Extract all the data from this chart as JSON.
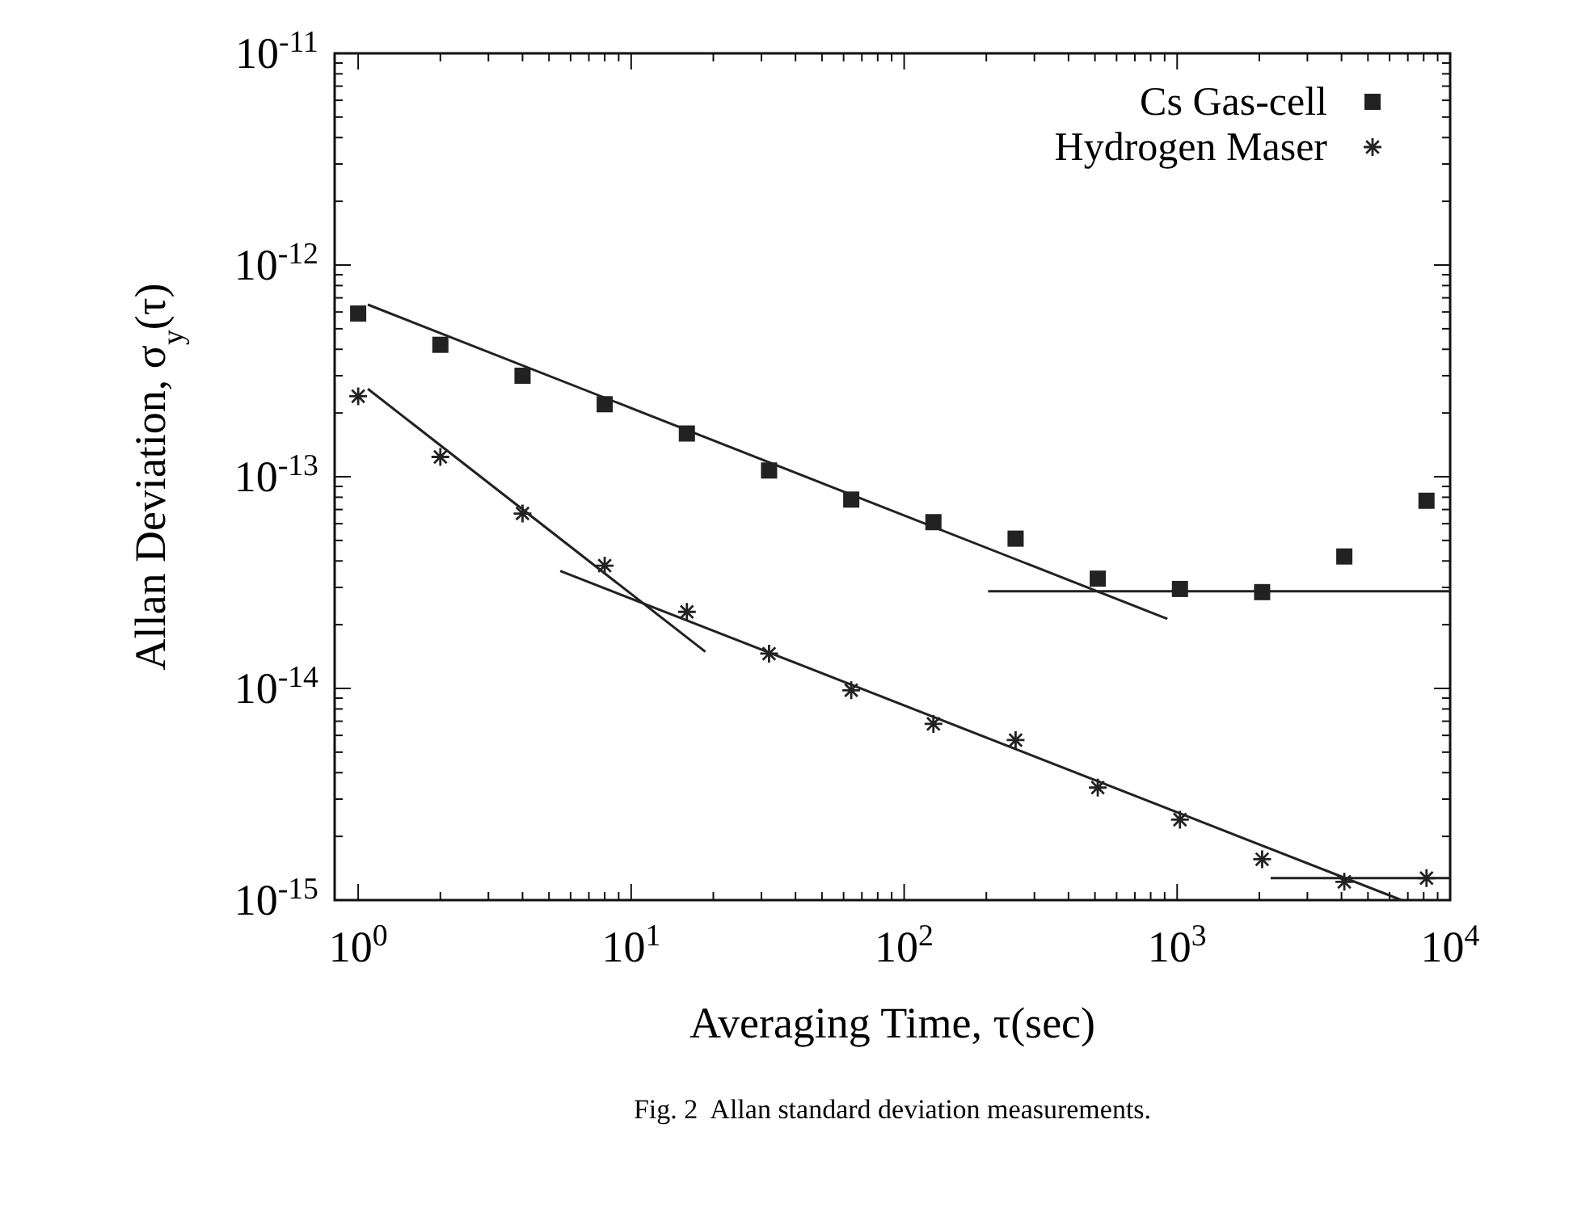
{
  "chart_data": {
    "type": "scatter",
    "xlabel": "Averaging Time, τ(sec)",
    "ylabel": "Allan Deviation, σ$_{y}$(τ)",
    "annotations": [
      "Fig. 2  Allan standard deviation measurements."
    ],
    "log": "xy",
    "legend": "top right",
    "grid": false,
    "xlim": [
      0.82,
      10000
    ],
    "xticks": [
      {
        "value": 1,
        "label": "10$^{0}$"
      },
      {
        "value": 10,
        "label": "10$^{1}$"
      },
      {
        "value": 100,
        "label": "10$^{2}$"
      },
      {
        "value": 1000,
        "label": "10$^{3}$"
      },
      {
        "value": 10000,
        "label": "10$^{4}$"
      },
      {
        "value": 2,
        "label": null
      },
      {
        "value": 3,
        "label": null
      },
      {
        "value": 4,
        "label": null
      },
      {
        "value": 5,
        "label": null
      },
      {
        "value": 6,
        "label": null
      },
      {
        "value": 7,
        "label": null
      },
      {
        "value": 8,
        "label": null
      },
      {
        "value": 9,
        "label": null
      },
      {
        "value": 20,
        "label": null
      },
      {
        "value": 30,
        "label": null
      },
      {
        "value": 40,
        "label": null
      },
      {
        "value": 50,
        "label": null
      },
      {
        "value": 60,
        "label": null
      },
      {
        "value": 70,
        "label": null
      },
      {
        "value": 80,
        "label": null
      },
      {
        "value": 90,
        "label": null
      },
      {
        "value": 200,
        "label": null
      },
      {
        "value": 300,
        "label": null
      },
      {
        "value": 400,
        "label": null
      },
      {
        "value": 500,
        "label": null
      },
      {
        "value": 600,
        "label": null
      },
      {
        "value": 700,
        "label": null
      },
      {
        "value": 800,
        "label": null
      },
      {
        "value": 900,
        "label": null
      },
      {
        "value": 2000,
        "label": null
      },
      {
        "value": 3000,
        "label": null
      },
      {
        "value": 4000,
        "label": null
      },
      {
        "value": 5000,
        "label": null
      },
      {
        "value": 6000,
        "label": null
      },
      {
        "value": 7000,
        "label": null
      },
      {
        "value": 8000,
        "label": null
      },
      {
        "value": 9000,
        "label": null
      }
    ],
    "ylim": [
      1e-15,
      1e-11
    ],
    "yticks": [
      {
        "value": 1e-15,
        "label": "10$^{-15}$"
      },
      {
        "value": 1e-14,
        "label": "10$^{-14}$"
      },
      {
        "value": 1e-13,
        "label": "10$^{-13}$"
      },
      {
        "value": 1e-12,
        "label": "10$^{-12}$"
      },
      {
        "value": 1e-11,
        "label": "10$^{-11}$"
      },
      {
        "value": 2e-15,
        "label": null
      },
      {
        "value": 3e-15,
        "label": null
      },
      {
        "value": 4e-15,
        "label": null
      },
      {
        "value": 5e-15,
        "label": null
      },
      {
        "value": 6e-15,
        "label": null
      },
      {
        "value": 7e-15,
        "label": null
      },
      {
        "value": 8e-15,
        "label": null
      },
      {
        "value": 9e-15,
        "label": null
      },
      {
        "value": 2e-14,
        "label": null
      },
      {
        "value": 3e-14,
        "label": null
      },
      {
        "value": 4e-14,
        "label": null
      },
      {
        "value": 5e-14,
        "label": null
      },
      {
        "value": 6e-14,
        "label": null
      },
      {
        "value": 7e-14,
        "label": null
      },
      {
        "value": 8e-14,
        "label": null
      },
      {
        "value": 9e-14,
        "label": null
      },
      {
        "value": 2e-13,
        "label": null
      },
      {
        "value": 3e-13,
        "label": null
      },
      {
        "value": 4e-13,
        "label": null
      },
      {
        "value": 5e-13,
        "label": null
      },
      {
        "value": 6e-13,
        "label": null
      },
      {
        "value": 7e-13,
        "label": null
      },
      {
        "value": 8e-13,
        "label": null
      },
      {
        "value": 9e-13,
        "label": null
      },
      {
        "value": 2e-12,
        "label": null
      },
      {
        "value": 3e-12,
        "label": null
      },
      {
        "value": 4e-12,
        "label": null
      },
      {
        "value": 5e-12,
        "label": null
      },
      {
        "value": 6e-12,
        "label": null
      },
      {
        "value": 7e-12,
        "label": null
      },
      {
        "value": 8e-12,
        "label": null
      },
      {
        "value": 9e-12,
        "label": null
      }
    ],
    "series": [
      {
        "name": "Cs Gas-cell",
        "marker": "square",
        "color": "#222222",
        "x": [
          1,
          2,
          4,
          8,
          16,
          32,
          64,
          128,
          256,
          512,
          1024,
          2048,
          4096,
          8192
        ],
        "values": [
          5.9e-13,
          4.2e-13,
          3e-13,
          2.2e-13,
          1.6e-13,
          1.07e-13,
          7.8e-14,
          6.1e-14,
          5.1e-14,
          3.3e-14,
          2.95e-14,
          2.85e-14,
          4.2e-14,
          7.7e-14
        ]
      },
      {
        "name": "Hydrogen Maser",
        "marker": "cross",
        "color": "#222222",
        "x": [
          1,
          2,
          4,
          8,
          16,
          32,
          64,
          128,
          256,
          512,
          1024,
          2048,
          4096,
          8192
        ],
        "values": [
          2.4e-13,
          1.24e-13,
          6.7e-14,
          3.8e-14,
          2.3e-14,
          1.46e-14,
          9.8e-15,
          6.8e-15,
          5.7e-15,
          3.4e-15,
          2.4e-15,
          1.56e-15,
          1.22e-15,
          1.27e-15
        ]
      },
      {
        "type": "line",
        "line_style": "solid",
        "color": "#222222",
        "x": [
          1.085,
          921
        ],
        "values": [
          6.5e-13,
          2.13e-14
        ]
      },
      {
        "type": "line",
        "line_style": "solid",
        "color": "#222222",
        "x": [
          203,
          10000
        ],
        "values": [
          2.88e-14,
          2.88e-14
        ]
      },
      {
        "type": "line",
        "line_style": "solid",
        "color": "#222222",
        "x": [
          1.085,
          18.7
        ],
        "values": [
          2.6e-13,
          1.49e-14
        ]
      },
      {
        "type": "line",
        "line_style": "solid",
        "color": "#222222",
        "x": [
          5.5,
          6640
        ],
        "values": [
          3.59e-14,
          1e-15
        ]
      },
      {
        "type": "line",
        "line_style": "solid",
        "color": "#222222",
        "x": [
          2200,
          10000
        ],
        "values": [
          1.27e-15,
          1.27e-15
        ]
      }
    ]
  }
}
